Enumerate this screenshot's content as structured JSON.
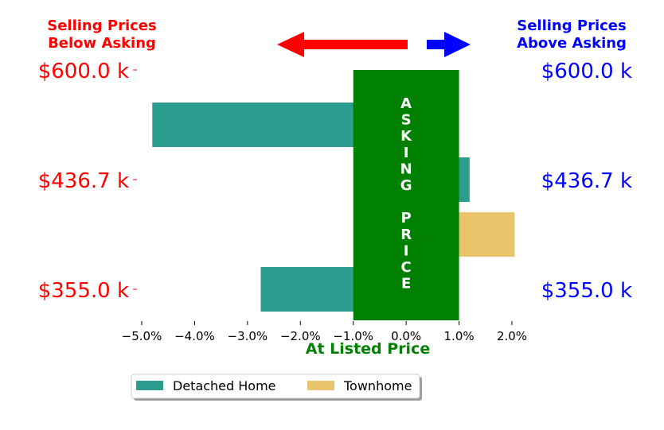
{
  "header": {
    "left_title_line1": "Selling Prices",
    "left_title_line2": "Below Asking",
    "right_title_line1": "Selling Prices",
    "right_title_line2": "Above Asking"
  },
  "asking_band_label": [
    "A",
    "S",
    "K",
    "I",
    "N",
    "G",
    "",
    "P",
    "R",
    "I",
    "C",
    "E"
  ],
  "colors": {
    "below": "#ff0000",
    "above": "#0000ff",
    "asking_band": "#008000",
    "detached": "#2a9d8f",
    "townhome": "#e9c46a"
  },
  "chart_data": {
    "type": "bar",
    "orientation": "horizontal",
    "xlabel": "At Listed Price",
    "xlim": [
      -5.0,
      2.0
    ],
    "x_ticks": [
      "−5.0%",
      "−4.0%",
      "−3.0%",
      "−2.0%",
      "−1.0%",
      "0.0%",
      "1.0%",
      "2.0%"
    ],
    "categories": [
      "$600.0 k",
      "$436.7 k",
      "$355.0 k"
    ],
    "series": [
      {
        "name": "Detached Home",
        "values": [
          -4.8,
          1.2,
          -2.75
        ]
      },
      {
        "name": "Townhome",
        "values": [
          null,
          2.05,
          null
        ]
      }
    ],
    "asking_band_range": [
      -1.0,
      1.0
    ],
    "legend": "bottom-center"
  }
}
